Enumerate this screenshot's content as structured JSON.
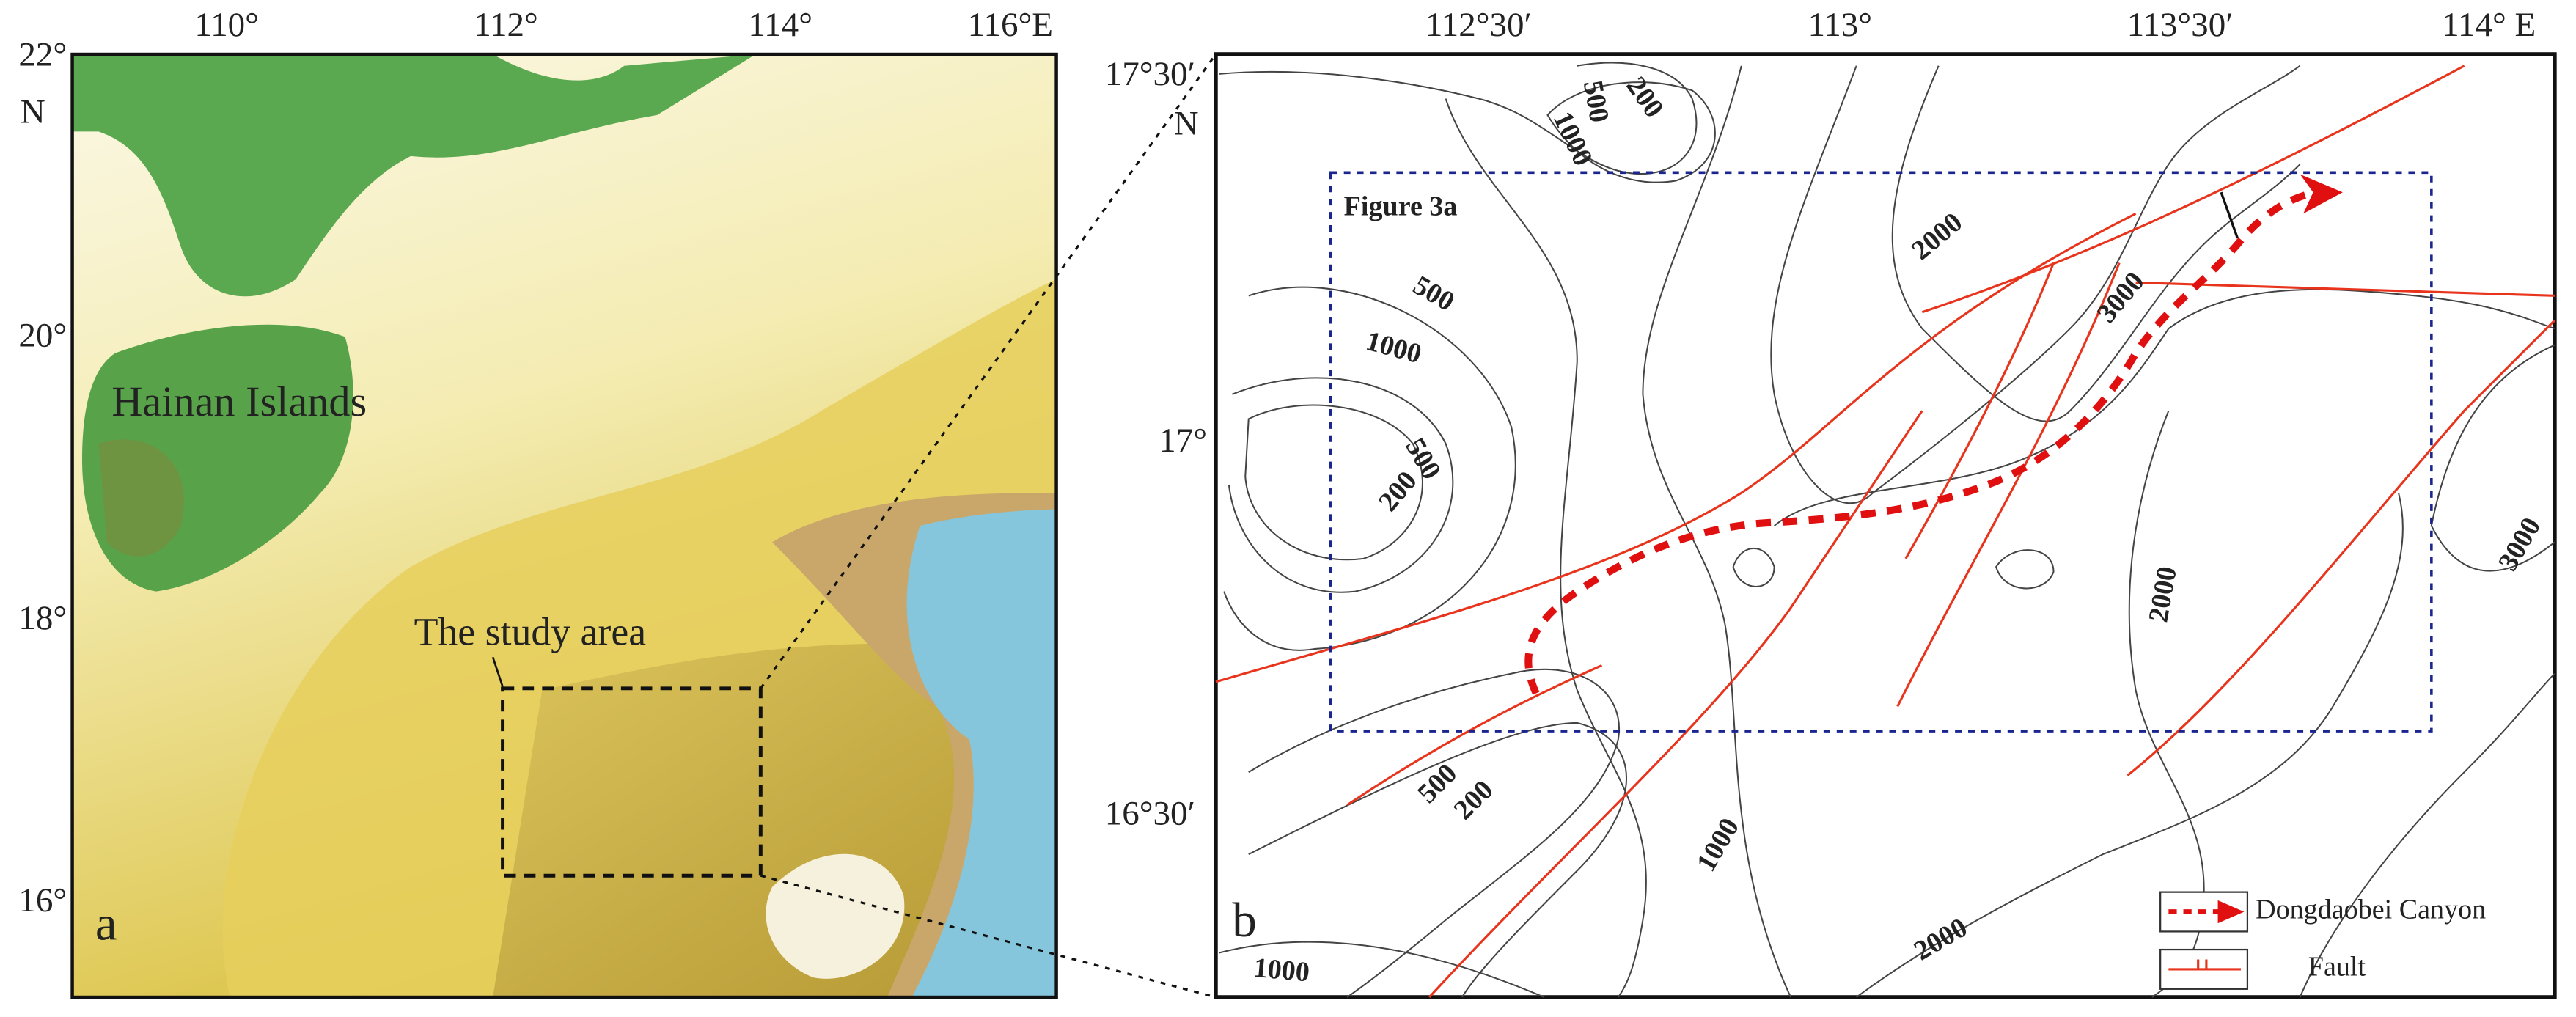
{
  "panel_a": {
    "label": "a",
    "lon_ticks": [
      "110°",
      "112°",
      "114°",
      "116°E"
    ],
    "lat_ticks": [
      "22°",
      "20°",
      "18°",
      "16°"
    ],
    "lat_unit": "N",
    "place_labels": [
      "Hainan Islands",
      "The study area"
    ]
  },
  "panel_b": {
    "label": "b",
    "lon_ticks": [
      "112°30′",
      "113°",
      "113°30′",
      "114° E"
    ],
    "lat_ticks": [
      "17°30′",
      "17°",
      "16°30′"
    ],
    "lat_unit": "N",
    "box_label": "Figure 3a",
    "contour_labels": [
      "200",
      "500",
      "1000",
      "2000",
      "3000",
      "500",
      "1000",
      "500",
      "200",
      "2000",
      "3000",
      "500",
      "200",
      "1000",
      "2000",
      "1000"
    ],
    "legend": [
      "Dongdaobei Canyon",
      "Fault"
    ]
  }
}
